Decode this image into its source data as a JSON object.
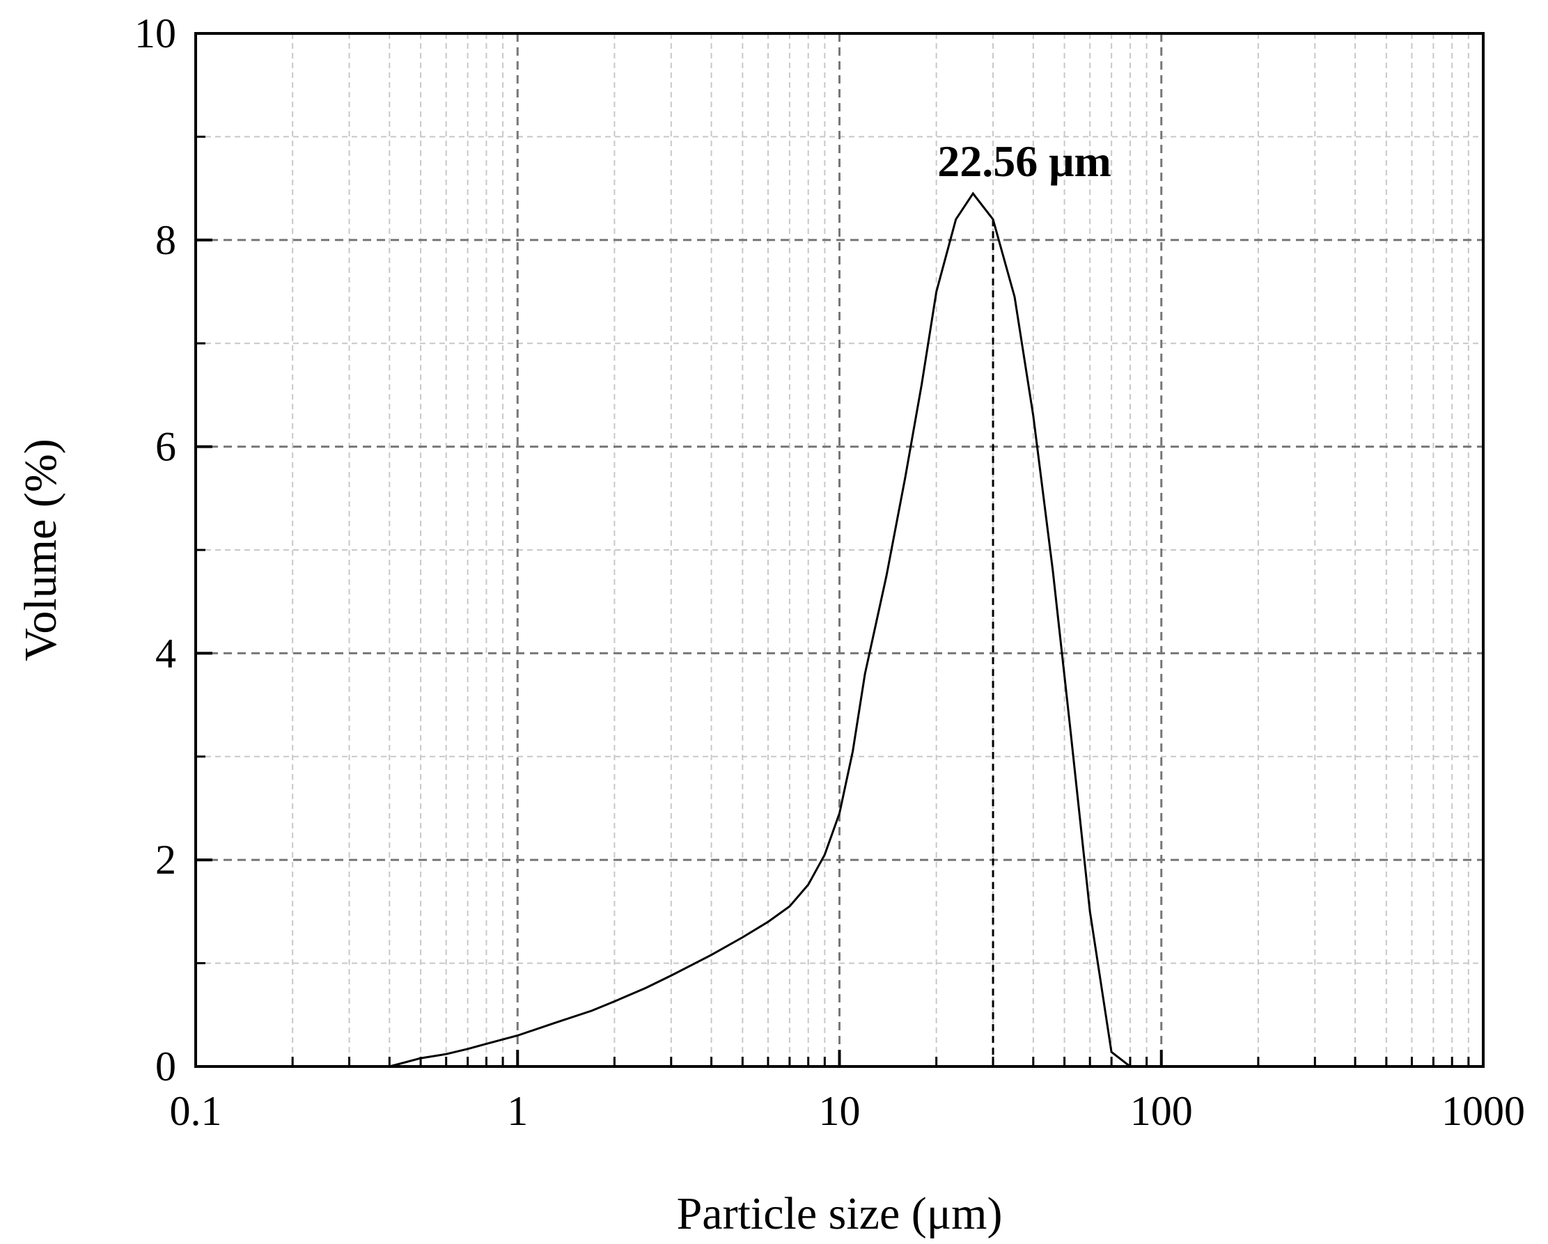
{
  "chart_data": {
    "type": "line",
    "title": "",
    "xlabel": "Particle size (μm)",
    "ylabel": "Volume (%)",
    "x_scale": "log",
    "xlim": [
      0.1,
      1000
    ],
    "ylim": [
      0,
      10
    ],
    "x_ticks": [
      "0.1",
      "1",
      "10",
      "100",
      "1000"
    ],
    "y_ticks": [
      "0",
      "2",
      "4",
      "6",
      "8",
      "10"
    ],
    "grid": true,
    "legend": "none",
    "line_color": "#000000",
    "series": [
      {
        "x": [
          0.4,
          0.5,
          0.6,
          0.7,
          0.8,
          1.0,
          1.3,
          1.7,
          2.0,
          2.5,
          3.0,
          4.0,
          5.0,
          6.0,
          7.0,
          8.0,
          9.0,
          10.0,
          11.0,
          12.0,
          14.0,
          16.0,
          18.0,
          20.0,
          23.0,
          26.0,
          30.0,
          35.0,
          40.0,
          46.0,
          52.0,
          60.0,
          70.0,
          80.0,
          90.0
        ],
        "y": [
          0.0,
          0.08,
          0.12,
          0.17,
          0.22,
          0.3,
          0.42,
          0.54,
          0.63,
          0.76,
          0.88,
          1.08,
          1.25,
          1.4,
          1.55,
          1.76,
          2.05,
          2.45,
          3.05,
          3.8,
          4.75,
          5.7,
          6.6,
          7.5,
          8.2,
          8.45,
          8.2,
          7.45,
          6.3,
          4.8,
          3.3,
          1.5,
          0.14,
          0.0,
          0.0
        ]
      }
    ],
    "annotation": {
      "text": "22.56 μm",
      "x": 30
    }
  }
}
